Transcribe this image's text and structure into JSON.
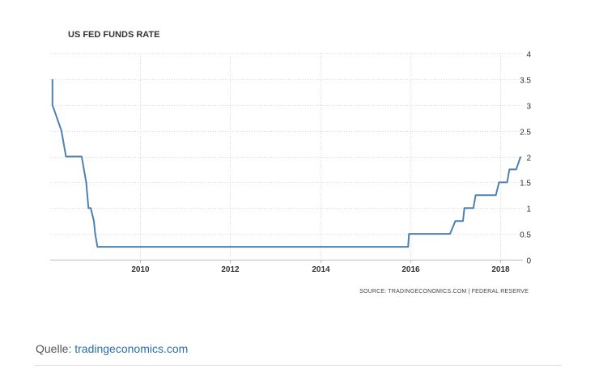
{
  "chart_data": {
    "type": "line",
    "title": "US FED FUNDS RATE",
    "xlabel": "",
    "ylabel": "",
    "xlim": [
      2008.0,
      2018.5
    ],
    "ylim": [
      0,
      4
    ],
    "x_ticks": [
      "2010",
      "2012",
      "2014",
      "2016",
      "2018"
    ],
    "y_ticks": [
      "0",
      "0.5",
      "1",
      "1.5",
      "2",
      "2.5",
      "3",
      "3.5",
      "4"
    ],
    "grid": true,
    "line_color": "#4f81b0",
    "series": [
      {
        "name": "",
        "points": [
          [
            2008.05,
            3.5
          ],
          [
            2008.05,
            3.0
          ],
          [
            2008.25,
            2.5
          ],
          [
            2008.3,
            2.25
          ],
          [
            2008.35,
            2.0
          ],
          [
            2008.6,
            2.0
          ],
          [
            2008.7,
            2.0
          ],
          [
            2008.8,
            1.5
          ],
          [
            2008.85,
            1.0
          ],
          [
            2008.9,
            1.0
          ],
          [
            2008.97,
            0.75
          ],
          [
            2009.0,
            0.5
          ],
          [
            2009.05,
            0.25
          ],
          [
            2015.95,
            0.25
          ],
          [
            2015.97,
            0.5
          ],
          [
            2016.88,
            0.5
          ],
          [
            2017.0,
            0.75
          ],
          [
            2017.17,
            0.75
          ],
          [
            2017.2,
            1.0
          ],
          [
            2017.4,
            1.0
          ],
          [
            2017.45,
            1.25
          ],
          [
            2017.9,
            1.25
          ],
          [
            2017.97,
            1.5
          ],
          [
            2018.15,
            1.5
          ],
          [
            2018.2,
            1.75
          ],
          [
            2018.35,
            1.75
          ],
          [
            2018.45,
            2.0
          ]
        ]
      }
    ]
  },
  "source_note": "SOURCE: TRADINGECONOMICS.COM | FEDERAL RESERVE",
  "footer": {
    "label": "Quelle:",
    "link_text": "tradingeconomics.com"
  }
}
